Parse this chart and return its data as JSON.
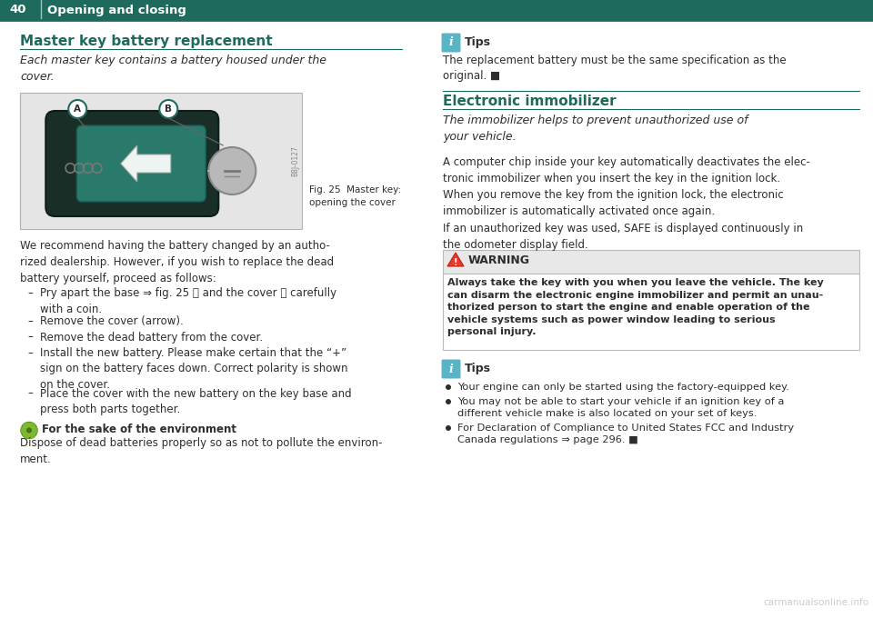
{
  "bg_color": "#ffffff",
  "header_bg": "#1e6b5e",
  "header_text_color": "#ffffff",
  "header_page_num": "40",
  "header_title": "Opening and closing",
  "teal_color": "#1e6b5e",
  "dark_text": "#2d2d2d",
  "tips_icon_bg": "#5ab4c5",
  "section1_title": "Master key battery replacement",
  "section1_italic": "Each master key contains a battery housed under the\ncover.",
  "fig_caption": "Fig. 25  Master key:\nopening the cover",
  "body1": "We recommend having the battery changed by an autho-\nrized dealership. However, if you wish to replace the dead\nbattery yourself, proceed as follows:",
  "bullets": [
    "Pry apart the base ⇒ fig. 25 Ⓐ and the cover Ⓑ carefully\nwith a coin.",
    "Remove the cover (arrow).",
    "Remove the dead battery from the cover.",
    "Install the new battery. Please make certain that the “+”\nsign on the battery faces down. Correct polarity is shown\non the cover.",
    "Place the cover with the new battery on the key base and\npress both parts together."
  ],
  "env_title": "For the sake of the environment",
  "env_body": "Dispose of dead batteries properly so as not to pollute the environ-\nment.",
  "tips1_title": "Tips",
  "tips1_body": "The replacement battery must be the same specification as the\noriginal. ■",
  "section2_title": "Electronic immobilizer",
  "section2_italic": "The immobilizer helps to prevent unauthorized use of\nyour vehicle.",
  "body2": "A computer chip inside your key automatically deactivates the elec-\ntronic immobilizer when you insert the key in the ignition lock.\nWhen you remove the key from the ignition lock, the electronic\nimmobilizer is automatically activated once again.",
  "body3": "If an unauthorized key was used, SAFE is displayed continuously in\nthe odometer display field.",
  "warning_title": "WARNING",
  "warning_body": "Always take the key with you when you leave the vehicle. The key\ncan disarm the electronic engine immobilizer and permit an unau-\nthorized person to start the engine and enable operation of the\nvehicle systems such as power window leading to serious\npersonal injury.",
  "tips2_title": "Tips",
  "tips2_bullets": [
    "Your engine can only be started using the factory-equipped key.",
    "You may not be able to start your vehicle if an ignition key of a\ndifferent vehicle make is also located on your set of keys.",
    "For Declaration of Compliance to United States FCC and Industry\nCanada regulations ⇒ page 296. ■"
  ],
  "watermark": "carmanualsonline.info"
}
